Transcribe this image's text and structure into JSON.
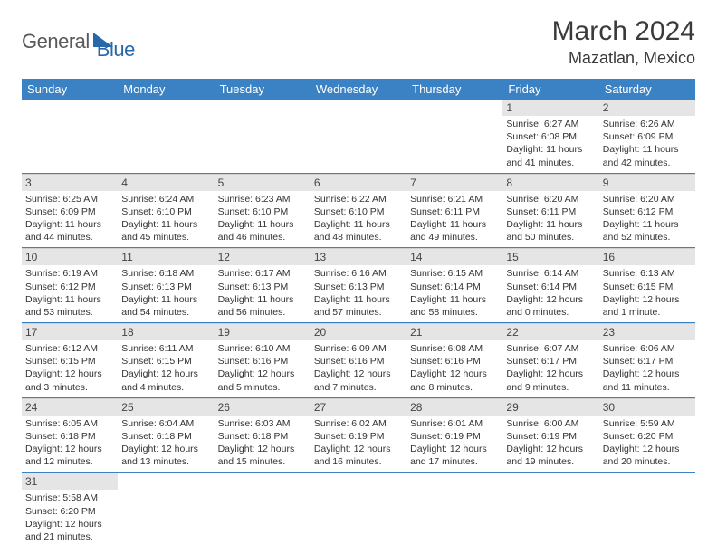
{
  "logo": {
    "part1": "General",
    "part2": "Blue"
  },
  "title": "March 2024",
  "location": "Mazatlan, Mexico",
  "headers": [
    "Sunday",
    "Monday",
    "Tuesday",
    "Wednesday",
    "Thursday",
    "Friday",
    "Saturday"
  ],
  "colors": {
    "header_bg": "#3b82c4",
    "header_fg": "#ffffff",
    "row_divider": "#3b82c4",
    "daynum_bg": "#e5e5e5",
    "logo_gray": "#5a5a5a",
    "logo_blue": "#2968a8"
  },
  "grid": [
    [
      null,
      null,
      null,
      null,
      null,
      {
        "n": "1",
        "sr": "6:27 AM",
        "ss": "6:08 PM",
        "dl": "11 hours and 41 minutes."
      },
      {
        "n": "2",
        "sr": "6:26 AM",
        "ss": "6:09 PM",
        "dl": "11 hours and 42 minutes."
      }
    ],
    [
      {
        "n": "3",
        "sr": "6:25 AM",
        "ss": "6:09 PM",
        "dl": "11 hours and 44 minutes."
      },
      {
        "n": "4",
        "sr": "6:24 AM",
        "ss": "6:10 PM",
        "dl": "11 hours and 45 minutes."
      },
      {
        "n": "5",
        "sr": "6:23 AM",
        "ss": "6:10 PM",
        "dl": "11 hours and 46 minutes."
      },
      {
        "n": "6",
        "sr": "6:22 AM",
        "ss": "6:10 PM",
        "dl": "11 hours and 48 minutes."
      },
      {
        "n": "7",
        "sr": "6:21 AM",
        "ss": "6:11 PM",
        "dl": "11 hours and 49 minutes."
      },
      {
        "n": "8",
        "sr": "6:20 AM",
        "ss": "6:11 PM",
        "dl": "11 hours and 50 minutes."
      },
      {
        "n": "9",
        "sr": "6:20 AM",
        "ss": "6:12 PM",
        "dl": "11 hours and 52 minutes."
      }
    ],
    [
      {
        "n": "10",
        "sr": "6:19 AM",
        "ss": "6:12 PM",
        "dl": "11 hours and 53 minutes."
      },
      {
        "n": "11",
        "sr": "6:18 AM",
        "ss": "6:13 PM",
        "dl": "11 hours and 54 minutes."
      },
      {
        "n": "12",
        "sr": "6:17 AM",
        "ss": "6:13 PM",
        "dl": "11 hours and 56 minutes."
      },
      {
        "n": "13",
        "sr": "6:16 AM",
        "ss": "6:13 PM",
        "dl": "11 hours and 57 minutes."
      },
      {
        "n": "14",
        "sr": "6:15 AM",
        "ss": "6:14 PM",
        "dl": "11 hours and 58 minutes."
      },
      {
        "n": "15",
        "sr": "6:14 AM",
        "ss": "6:14 PM",
        "dl": "12 hours and 0 minutes."
      },
      {
        "n": "16",
        "sr": "6:13 AM",
        "ss": "6:15 PM",
        "dl": "12 hours and 1 minute."
      }
    ],
    [
      {
        "n": "17",
        "sr": "6:12 AM",
        "ss": "6:15 PM",
        "dl": "12 hours and 3 minutes."
      },
      {
        "n": "18",
        "sr": "6:11 AM",
        "ss": "6:15 PM",
        "dl": "12 hours and 4 minutes."
      },
      {
        "n": "19",
        "sr": "6:10 AM",
        "ss": "6:16 PM",
        "dl": "12 hours and 5 minutes."
      },
      {
        "n": "20",
        "sr": "6:09 AM",
        "ss": "6:16 PM",
        "dl": "12 hours and 7 minutes."
      },
      {
        "n": "21",
        "sr": "6:08 AM",
        "ss": "6:16 PM",
        "dl": "12 hours and 8 minutes."
      },
      {
        "n": "22",
        "sr": "6:07 AM",
        "ss": "6:17 PM",
        "dl": "12 hours and 9 minutes."
      },
      {
        "n": "23",
        "sr": "6:06 AM",
        "ss": "6:17 PM",
        "dl": "12 hours and 11 minutes."
      }
    ],
    [
      {
        "n": "24",
        "sr": "6:05 AM",
        "ss": "6:18 PM",
        "dl": "12 hours and 12 minutes."
      },
      {
        "n": "25",
        "sr": "6:04 AM",
        "ss": "6:18 PM",
        "dl": "12 hours and 13 minutes."
      },
      {
        "n": "26",
        "sr": "6:03 AM",
        "ss": "6:18 PM",
        "dl": "12 hours and 15 minutes."
      },
      {
        "n": "27",
        "sr": "6:02 AM",
        "ss": "6:19 PM",
        "dl": "12 hours and 16 minutes."
      },
      {
        "n": "28",
        "sr": "6:01 AM",
        "ss": "6:19 PM",
        "dl": "12 hours and 17 minutes."
      },
      {
        "n": "29",
        "sr": "6:00 AM",
        "ss": "6:19 PM",
        "dl": "12 hours and 19 minutes."
      },
      {
        "n": "30",
        "sr": "5:59 AM",
        "ss": "6:20 PM",
        "dl": "12 hours and 20 minutes."
      }
    ],
    [
      {
        "n": "31",
        "sr": "5:58 AM",
        "ss": "6:20 PM",
        "dl": "12 hours and 21 minutes."
      },
      null,
      null,
      null,
      null,
      null,
      null
    ]
  ],
  "labels": {
    "sunrise": "Sunrise: ",
    "sunset": "Sunset: ",
    "daylight": "Daylight: "
  }
}
